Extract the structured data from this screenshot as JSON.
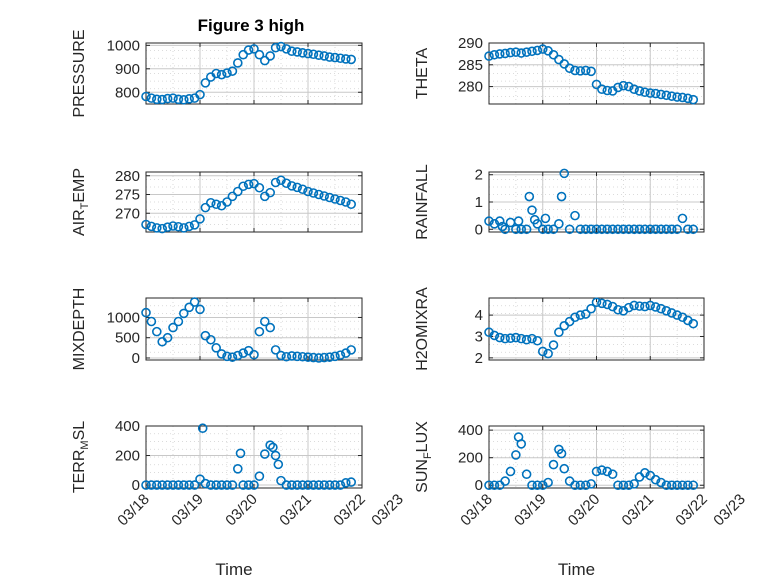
{
  "title": "Figure 3 high",
  "chart_data": [
    {
      "type": "scatter",
      "ylabel": "PRESSURE",
      "ylim": [
        750,
        1010
      ],
      "yticks": [
        800,
        900,
        1000
      ],
      "x": [
        0,
        0.1,
        0.2,
        0.3,
        0.4,
        0.5,
        0.6,
        0.7,
        0.8,
        0.9,
        1.0,
        1.1,
        1.2,
        1.3,
        1.4,
        1.5,
        1.6,
        1.7,
        1.8,
        1.9,
        2.0,
        2.1,
        2.2,
        2.3,
        2.4,
        2.5,
        2.6,
        2.7,
        2.8,
        2.9,
        3.0,
        3.1,
        3.2,
        3.3,
        3.4,
        3.5,
        3.6,
        3.7,
        3.8
      ],
      "y": [
        782,
        775,
        770,
        769,
        773,
        775,
        770,
        768,
        772,
        775,
        790,
        840,
        865,
        880,
        875,
        882,
        890,
        925,
        960,
        980,
        985,
        960,
        935,
        955,
        990,
        995,
        985,
        975,
        972,
        968,
        965,
        962,
        958,
        955,
        950,
        948,
        945,
        942,
        940
      ]
    },
    {
      "type": "scatter",
      "ylabel": "THETA",
      "ylim": [
        276,
        290
      ],
      "yticks": [
        280,
        285,
        290
      ],
      "x": [
        0,
        0.1,
        0.2,
        0.3,
        0.4,
        0.5,
        0.6,
        0.7,
        0.8,
        0.9,
        1.0,
        1.1,
        1.2,
        1.3,
        1.4,
        1.5,
        1.6,
        1.7,
        1.8,
        1.9,
        2.0,
        2.1,
        2.2,
        2.3,
        2.4,
        2.5,
        2.6,
        2.7,
        2.8,
        2.9,
        3.0,
        3.1,
        3.2,
        3.3,
        3.4,
        3.5,
        3.6,
        3.7,
        3.8
      ],
      "y": [
        287,
        287.3,
        287.5,
        287.6,
        287.8,
        287.9,
        287.7,
        287.9,
        288.1,
        288.3,
        288.6,
        288.2,
        287.3,
        286.2,
        285.2,
        284.2,
        283.7,
        283.6,
        283.7,
        283.5,
        280.5,
        279.4,
        279.1,
        279.0,
        279.8,
        280.2,
        280.0,
        279.4,
        279.0,
        278.7,
        278.5,
        278.4,
        278.2,
        278.0,
        277.8,
        277.6,
        277.5,
        277.3,
        277.0
      ]
    },
    {
      "type": "scatter",
      "ylabel": "AIR_TEMP",
      "ylim": [
        265,
        281
      ],
      "yticks": [
        270,
        275,
        280
      ],
      "x": [
        0,
        0.1,
        0.2,
        0.3,
        0.4,
        0.5,
        0.6,
        0.7,
        0.8,
        0.9,
        1.0,
        1.1,
        1.2,
        1.3,
        1.4,
        1.5,
        1.6,
        1.7,
        1.8,
        1.9,
        2.0,
        2.1,
        2.2,
        2.3,
        2.4,
        2.5,
        2.6,
        2.7,
        2.8,
        2.9,
        3.0,
        3.1,
        3.2,
        3.3,
        3.4,
        3.5,
        3.6,
        3.7,
        3.8
      ],
      "y": [
        267.0,
        266.5,
        266.1,
        265.9,
        266.3,
        266.6,
        266.4,
        266.1,
        266.5,
        266.9,
        268.5,
        271.5,
        272.8,
        272.4,
        272.0,
        273.0,
        274.5,
        275.8,
        277.2,
        277.7,
        277.9,
        276.8,
        274.5,
        275.5,
        278.2,
        278.8,
        278.0,
        277.3,
        276.9,
        276.4,
        275.8,
        275.4,
        275.0,
        274.6,
        274.2,
        273.8,
        273.4,
        273.0,
        272.4
      ]
    },
    {
      "type": "scatter",
      "ylabel": "RAINFALL",
      "ylim": [
        -0.1,
        2.1
      ],
      "yticks": [
        0,
        1,
        2
      ],
      "x": [
        0,
        0.1,
        0.2,
        0.25,
        0.3,
        0.4,
        0.5,
        0.55,
        0.6,
        0.7,
        0.75,
        0.8,
        0.85,
        0.9,
        1.0,
        1.05,
        1.1,
        1.2,
        1.3,
        1.35,
        1.4,
        1.5,
        1.6,
        1.7,
        1.8,
        1.9,
        2.0,
        2.1,
        2.2,
        2.3,
        2.4,
        2.5,
        2.6,
        2.7,
        2.8,
        2.9,
        3.0,
        3.1,
        3.2,
        3.3,
        3.4,
        3.5,
        3.6,
        3.7,
        3.8
      ],
      "y": [
        0.3,
        0.2,
        0.3,
        0.1,
        0,
        0.25,
        0,
        0.3,
        0,
        0,
        1.2,
        0.7,
        0.35,
        0.2,
        0,
        0.4,
        0,
        0,
        0.2,
        1.2,
        2.05,
        0,
        0.5,
        0,
        0,
        0,
        0,
        0,
        0,
        0,
        0,
        0,
        0,
        0,
        0,
        0,
        0,
        0,
        0,
        0,
        0,
        0,
        0.4,
        0,
        0
      ]
    },
    {
      "type": "scatter",
      "ylabel": "MIXDEPTH",
      "ylim": [
        -50,
        1480
      ],
      "yticks": [
        0,
        500,
        1000
      ],
      "x": [
        0,
        0.1,
        0.2,
        0.3,
        0.4,
        0.5,
        0.6,
        0.7,
        0.8,
        0.9,
        1.0,
        1.1,
        1.2,
        1.3,
        1.4,
        1.5,
        1.6,
        1.7,
        1.8,
        1.9,
        2.0,
        2.1,
        2.2,
        2.3,
        2.4,
        2.5,
        2.6,
        2.7,
        2.8,
        2.9,
        3.0,
        3.1,
        3.2,
        3.3,
        3.4,
        3.5,
        3.6,
        3.7,
        3.8
      ],
      "y": [
        1120,
        900,
        650,
        400,
        500,
        750,
        900,
        1100,
        1250,
        1380,
        1200,
        550,
        450,
        250,
        100,
        40,
        20,
        60,
        120,
        180,
        80,
        650,
        900,
        750,
        200,
        60,
        30,
        50,
        40,
        30,
        20,
        10,
        0,
        10,
        20,
        40,
        70,
        120,
        200
      ]
    },
    {
      "type": "scatter",
      "ylabel": "H2OMIXRA",
      "ylim": [
        1.9,
        4.8
      ],
      "yticks": [
        2,
        3,
        4
      ],
      "x": [
        0,
        0.1,
        0.2,
        0.3,
        0.4,
        0.5,
        0.6,
        0.7,
        0.8,
        0.9,
        1.0,
        1.1,
        1.2,
        1.3,
        1.4,
        1.5,
        1.6,
        1.7,
        1.8,
        1.9,
        2.0,
        2.1,
        2.2,
        2.3,
        2.4,
        2.5,
        2.6,
        2.7,
        2.8,
        2.9,
        3.0,
        3.1,
        3.2,
        3.3,
        3.4,
        3.5,
        3.6,
        3.7,
        3.8
      ],
      "y": [
        3.2,
        3.05,
        2.95,
        2.9,
        2.92,
        2.95,
        2.9,
        2.85,
        2.9,
        2.8,
        2.3,
        2.2,
        2.6,
        3.2,
        3.5,
        3.7,
        3.9,
        4.0,
        4.05,
        4.3,
        4.6,
        4.55,
        4.5,
        4.4,
        4.25,
        4.2,
        4.35,
        4.45,
        4.42,
        4.4,
        4.45,
        4.38,
        4.3,
        4.2,
        4.1,
        4.0,
        3.9,
        3.75,
        3.6
      ]
    },
    {
      "type": "scatter",
      "ylabel": "TERR_MSL",
      "ylim": [
        -20,
        400
      ],
      "yticks": [
        0,
        200,
        400
      ],
      "x": [
        0,
        0.1,
        0.2,
        0.3,
        0.4,
        0.5,
        0.6,
        0.7,
        0.8,
        0.9,
        1.0,
        1.05,
        1.1,
        1.2,
        1.3,
        1.4,
        1.5,
        1.6,
        1.7,
        1.75,
        1.8,
        1.9,
        2.0,
        2.1,
        2.2,
        2.3,
        2.35,
        2.4,
        2.45,
        2.5,
        2.6,
        2.7,
        2.8,
        2.9,
        3.0,
        3.1,
        3.2,
        3.3,
        3.4,
        3.5,
        3.6,
        3.7,
        3.8
      ],
      "y": [
        0,
        0,
        0,
        0,
        0,
        0,
        0,
        0,
        0,
        0,
        40,
        385,
        10,
        0,
        0,
        0,
        0,
        0,
        110,
        215,
        0,
        0,
        0,
        60,
        210,
        270,
        255,
        200,
        140,
        30,
        0,
        0,
        0,
        0,
        0,
        0,
        0,
        0,
        0,
        0,
        0,
        15,
        20
      ]
    },
    {
      "type": "scatter",
      "ylabel": "SUN_FLUX",
      "ylim": [
        -20,
        430
      ],
      "yticks": [
        0,
        200,
        400
      ],
      "x": [
        0,
        0.1,
        0.2,
        0.3,
        0.4,
        0.5,
        0.55,
        0.6,
        0.7,
        0.8,
        0.9,
        1.0,
        1.1,
        1.2,
        1.3,
        1.35,
        1.4,
        1.5,
        1.6,
        1.7,
        1.8,
        1.9,
        2.0,
        2.1,
        2.2,
        2.3,
        2.4,
        2.5,
        2.6,
        2.7,
        2.8,
        2.9,
        3.0,
        3.1,
        3.2,
        3.3,
        3.4,
        3.5,
        3.6,
        3.7,
        3.8
      ],
      "y": [
        0,
        0,
        0,
        30,
        100,
        220,
        350,
        300,
        80,
        0,
        0,
        0,
        20,
        150,
        260,
        230,
        120,
        30,
        0,
        0,
        0,
        10,
        100,
        110,
        100,
        80,
        0,
        0,
        0,
        10,
        60,
        90,
        70,
        40,
        20,
        0,
        0,
        0,
        0,
        0,
        0
      ]
    }
  ],
  "xaxis": {
    "label": "Time",
    "ticks": [
      0,
      1,
      2,
      3,
      4,
      5
    ],
    "ticklabels": [
      "03/18",
      "03/19",
      "03/20",
      "03/21",
      "03/22",
      "03/23"
    ],
    "xlim": [
      0,
      5
    ],
    "data_xlim": [
      0,
      4
    ]
  },
  "colors": {
    "marker": "#0072BD",
    "grid": "#d0d0d0",
    "axis": "#262626"
  },
  "grid": true,
  "marker": "circle-open"
}
